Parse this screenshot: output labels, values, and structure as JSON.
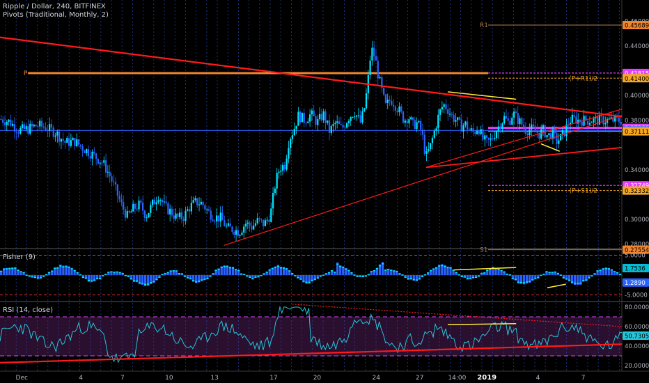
{
  "header": {
    "symbol_line": "Ripple / Dollar, 240, BITFINEX",
    "pivots_line": "Pivots (Traditional, Monthly, 2)"
  },
  "chart_data": [
    {
      "type": "candlestick",
      "title": "Ripple / Dollar, 240, BITFINEX",
      "ylim": [
        0.277,
        0.467
      ],
      "y_ticks": [
        "0.46000",
        "0.44000",
        "0.40000",
        "0.38000",
        "0.34000",
        "0.30000",
        "0.28000"
      ],
      "grid": "vertical-dotted",
      "price_path": [
        [
          0,
          0.381
        ],
        [
          0.015,
          0.379
        ],
        [
          0.03,
          0.372
        ],
        [
          0.045,
          0.373
        ],
        [
          0.06,
          0.376
        ],
        [
          0.075,
          0.374
        ],
        [
          0.09,
          0.37
        ],
        [
          0.105,
          0.362
        ],
        [
          0.12,
          0.363
        ],
        [
          0.135,
          0.357
        ],
        [
          0.15,
          0.352
        ],
        [
          0.165,
          0.346
        ],
        [
          0.175,
          0.337
        ],
        [
          0.185,
          0.325
        ],
        [
          0.195,
          0.312
        ],
        [
          0.205,
          0.302
        ],
        [
          0.215,
          0.309
        ],
        [
          0.225,
          0.312
        ],
        [
          0.235,
          0.303
        ],
        [
          0.245,
          0.312
        ],
        [
          0.255,
          0.32
        ],
        [
          0.265,
          0.31
        ],
        [
          0.275,
          0.306
        ],
        [
          0.285,
          0.301
        ],
        [
          0.295,
          0.302
        ],
        [
          0.305,
          0.31
        ],
        [
          0.315,
          0.314
        ],
        [
          0.325,
          0.313
        ],
        [
          0.335,
          0.306
        ],
        [
          0.345,
          0.302
        ],
        [
          0.355,
          0.301
        ],
        [
          0.365,
          0.293
        ],
        [
          0.375,
          0.292
        ],
        [
          0.385,
          0.29
        ],
        [
          0.395,
          0.297
        ],
        [
          0.405,
          0.294
        ],
        [
          0.415,
          0.299
        ],
        [
          0.425,
          0.296
        ],
        [
          0.435,
          0.304
        ],
        [
          0.443,
          0.33
        ],
        [
          0.45,
          0.342
        ],
        [
          0.458,
          0.344
        ],
        [
          0.465,
          0.365
        ],
        [
          0.472,
          0.372
        ],
        [
          0.48,
          0.384
        ],
        [
          0.49,
          0.38
        ],
        [
          0.5,
          0.385
        ],
        [
          0.51,
          0.378
        ],
        [
          0.52,
          0.385
        ],
        [
          0.53,
          0.371
        ],
        [
          0.54,
          0.378
        ],
        [
          0.55,
          0.373
        ],
        [
          0.56,
          0.382
        ],
        [
          0.57,
          0.387
        ],
        [
          0.58,
          0.378
        ],
        [
          0.587,
          0.392
        ],
        [
          0.592,
          0.413
        ],
        [
          0.597,
          0.438
        ],
        [
          0.603,
          0.431
        ],
        [
          0.608,
          0.417
        ],
        [
          0.613,
          0.406
        ],
        [
          0.62,
          0.391
        ],
        [
          0.628,
          0.397
        ],
        [
          0.635,
          0.393
        ],
        [
          0.643,
          0.387
        ],
        [
          0.65,
          0.38
        ],
        [
          0.657,
          0.383
        ],
        [
          0.664,
          0.376
        ],
        [
          0.671,
          0.378
        ],
        [
          0.678,
          0.371
        ],
        [
          0.685,
          0.35
        ],
        [
          0.692,
          0.359
        ],
        [
          0.699,
          0.372
        ],
        [
          0.706,
          0.385
        ],
        [
          0.713,
          0.393
        ],
        [
          0.72,
          0.389
        ],
        [
          0.727,
          0.383
        ],
        [
          0.734,
          0.38
        ],
        [
          0.741,
          0.375
        ],
        [
          0.748,
          0.377
        ],
        [
          0.755,
          0.372
        ],
        [
          0.762,
          0.37
        ],
        [
          0.769,
          0.375
        ],
        [
          0.776,
          0.365
        ],
        [
          0.783,
          0.362
        ],
        [
          0.79,
          0.364
        ],
        [
          0.797,
          0.371
        ],
        [
          0.804,
          0.377
        ],
        [
          0.811,
          0.382
        ],
        [
          0.818,
          0.378
        ],
        [
          0.825,
          0.386
        ],
        [
          0.832,
          0.381
        ],
        [
          0.839,
          0.377
        ],
        [
          0.846,
          0.372
        ],
        [
          0.853,
          0.373
        ],
        [
          0.86,
          0.372
        ],
        [
          0.867,
          0.369
        ],
        [
          0.874,
          0.372
        ],
        [
          0.881,
          0.367
        ],
        [
          0.888,
          0.37
        ],
        [
          0.895,
          0.363
        ],
        [
          0.902,
          0.366
        ],
        [
          0.909,
          0.372
        ],
        [
          0.916,
          0.38
        ],
        [
          0.923,
          0.381
        ],
        [
          0.93,
          0.38
        ]
      ],
      "pivots": {
        "P": {
          "label": "P",
          "value": 0.4181,
          "color": "#f0852d"
        },
        "R1": {
          "label": "R1",
          "value": 0.45689,
          "color": "#b07a4c"
        },
        "S1": {
          "label": "S1",
          "value": 0.27554,
          "color": "#b07a4c"
        },
        "PR1_half": {
          "label": "(P+R1)/2",
          "value": 0.414,
          "color": "#f5a623"
        },
        "PS1_half": {
          "label": "(P+S1)/2",
          "value": 0.32332,
          "color": "#f5a623"
        },
        "magenta_upper": {
          "value": 0.41815,
          "color": "#e040fb"
        },
        "magenta_lower": {
          "value": 0.32749,
          "color": "#e040fb"
        },
        "magenta_mid": {
          "value": 0.37389,
          "color": "#e040fb"
        },
        "blue_level": {
          "value": 0.37181,
          "color": "#2962ff"
        },
        "orange_mid": {
          "value": 0.37111,
          "color": "#f5a623"
        }
      },
      "price_labels": [
        {
          "text": "0.45689",
          "value": 0.45689,
          "bg": "#f0852d",
          "fg": "#000000"
        },
        {
          "text": "0.41815",
          "value": 0.41815,
          "bg": "#e040fb",
          "fg": "#ffffff"
        },
        {
          "text": "0.41400",
          "value": 0.414,
          "bg": "#f5a623",
          "fg": "#000000"
        },
        {
          "text": "0.37389",
          "value": 0.37389,
          "bg": "#e040fb",
          "fg": "#ffffff"
        },
        {
          "text": "0.37181",
          "value": 0.37181,
          "bg": "#2962ff",
          "fg": "#ffffff"
        },
        {
          "text": "0.37111",
          "value": 0.37111,
          "bg": "#f5a623",
          "fg": "#000000"
        },
        {
          "text": "0.32749",
          "value": 0.32749,
          "bg": "#e040fb",
          "fg": "#ffffff"
        },
        {
          "text": "0.32332",
          "value": 0.32332,
          "bg": "#f5a623",
          "fg": "#000000"
        },
        {
          "text": "0.27554",
          "value": 0.27554,
          "bg": "#f0852d",
          "fg": "#000000"
        }
      ],
      "colors": {
        "up": "#00e5ff",
        "down": "#2962ff",
        "trend": "#ff1a1a",
        "divergence": "#ffeb3b"
      }
    },
    {
      "type": "histogram",
      "title": "Fisher (9)",
      "ylim": [
        -6.5,
        6.5
      ],
      "y_ticks": [
        "5.0000",
        "-5.0000"
      ],
      "values_label_1": "1.7536",
      "values_label_2": "1.2890",
      "band_levels": [
        5.0,
        -5.0
      ],
      "colors": {
        "bars": "#2962ff",
        "signal": "#00e5ff",
        "band": "#ff3030"
      }
    },
    {
      "type": "line",
      "title": "RSI (14, close)",
      "ylim": [
        15,
        85
      ],
      "y_ticks": [
        "80.0000",
        "60.0000",
        "40.0000",
        "20.0000"
      ],
      "current_label": "50.7305",
      "band_levels": [
        70,
        30
      ],
      "colors": {
        "line": "#26c6da",
        "band": "#e040fb",
        "fill": "#2a0f2e",
        "trend": "#ff1a1a"
      }
    }
  ],
  "x_axis": {
    "labels": [
      {
        "text": "Dec",
        "pos": 0.035
      },
      {
        "text": "4",
        "pos": 0.13
      },
      {
        "text": "7",
        "pos": 0.197
      },
      {
        "text": "10",
        "pos": 0.272
      },
      {
        "text": "13",
        "pos": 0.345
      },
      {
        "text": "17",
        "pos": 0.44
      },
      {
        "text": "20",
        "pos": 0.51
      },
      {
        "text": "24",
        "pos": 0.605
      },
      {
        "text": "27",
        "pos": 0.675
      },
      {
        "text": "14:00",
        "pos": 0.735
      },
      {
        "text": "2019",
        "pos": 0.783
      },
      {
        "text": "4",
        "pos": 0.865
      },
      {
        "text": "7",
        "pos": 0.938
      }
    ]
  }
}
